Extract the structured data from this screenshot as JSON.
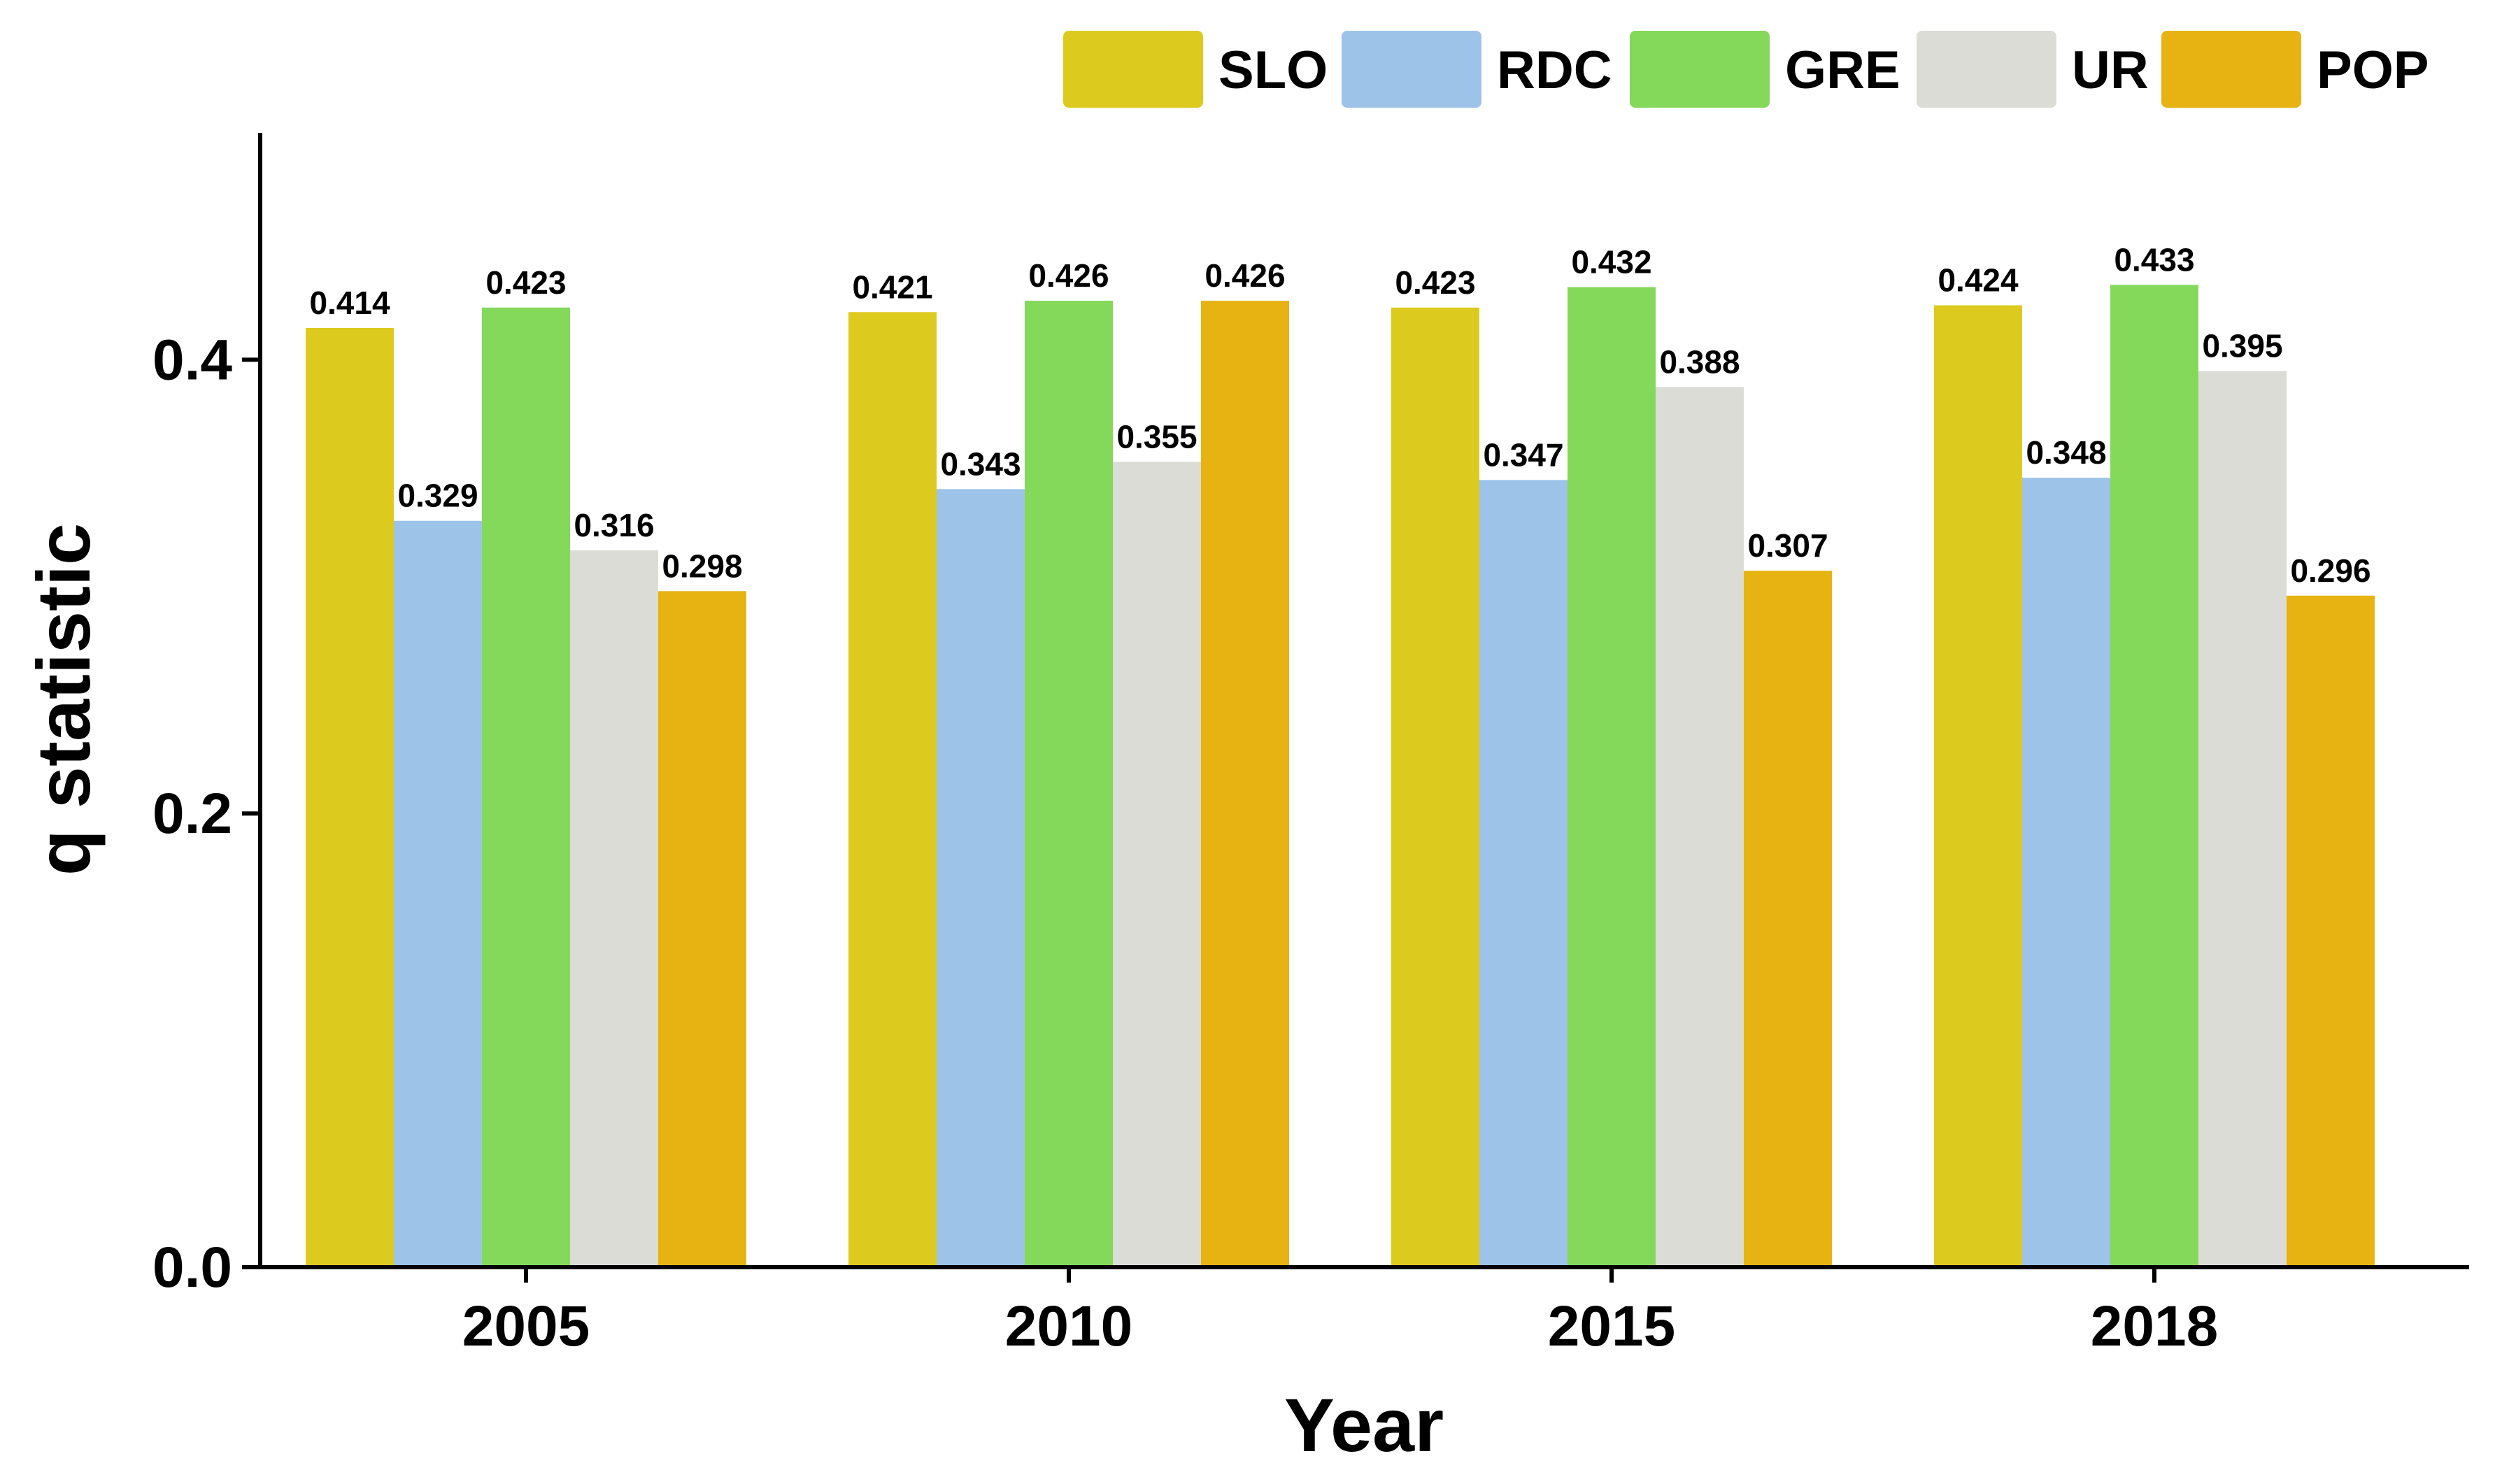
{
  "chart_data": {
    "type": "bar",
    "title": "",
    "xlabel": "Year",
    "ylabel": "q statistic",
    "ylim": [
      0,
      0.5
    ],
    "yticks": [
      0.0,
      0.2,
      0.4
    ],
    "ytick_labels": [
      "0.0",
      "0.2",
      "0.4"
    ],
    "grid": false,
    "legend_position": "top-right",
    "categories": [
      "2005",
      "2010",
      "2015",
      "2018"
    ],
    "series": [
      {
        "name": "SLO",
        "color": "#DDCA1E",
        "values": [
          0.414,
          0.421,
          0.423,
          0.424
        ],
        "labels": [
          "0.414",
          "0.421",
          "0.423",
          "0.424"
        ]
      },
      {
        "name": "RDC",
        "color": "#9DC3E9",
        "values": [
          0.329,
          0.343,
          0.347,
          0.348
        ],
        "labels": [
          "0.329",
          "0.343",
          "0.347",
          "0.348"
        ]
      },
      {
        "name": "GRE",
        "color": "#84D85A",
        "values": [
          0.423,
          0.426,
          0.432,
          0.433
        ],
        "labels": [
          "0.423",
          "0.426",
          "0.432",
          "0.433"
        ]
      },
      {
        "name": "UR",
        "color": "#DCDCD6",
        "values": [
          0.316,
          0.355,
          0.388,
          0.395
        ],
        "labels": [
          "0.316",
          "0.355",
          "0.388",
          "0.395"
        ]
      },
      {
        "name": "POP",
        "color": "#E6B313",
        "values": [
          0.298,
          0.426,
          0.307,
          0.296
        ],
        "labels": [
          "0.298",
          "0.426",
          "0.307",
          "0.296"
        ]
      }
    ]
  }
}
